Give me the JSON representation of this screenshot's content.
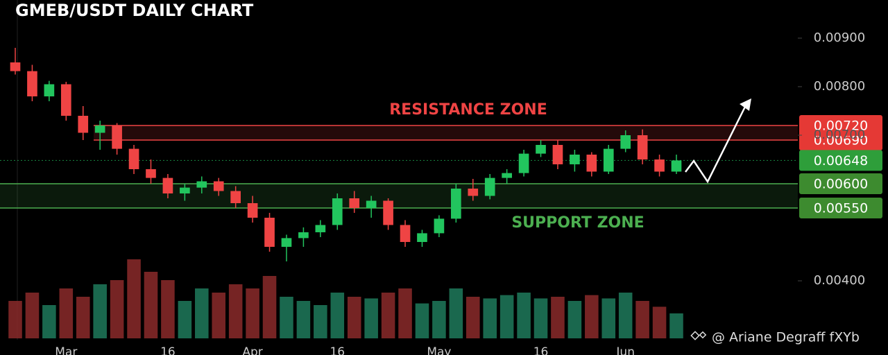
{
  "chart_data": {
    "type": "candlestick",
    "title": "GMEB/USDT DAILY CHART",
    "categories": [
      null,
      null,
      null,
      "Mar",
      null,
      null,
      null,
      null,
      null,
      "16",
      null,
      null,
      null,
      null,
      "Apr",
      null,
      null,
      null,
      null,
      "16",
      null,
      null,
      null,
      null,
      null,
      "May",
      null,
      null,
      null,
      null,
      null,
      "16",
      null,
      null,
      null,
      null,
      "Jun",
      null,
      null,
      null
    ],
    "open": [
      0.0085,
      0.00832,
      0.0078,
      0.00805,
      0.0074,
      0.00705,
      0.0072,
      0.00672,
      0.0063,
      0.00612,
      0.0058,
      0.00592,
      0.00605,
      0.00585,
      0.0056,
      0.0053,
      0.0047,
      0.00488,
      0.005,
      0.00515,
      0.0057,
      0.0055,
      0.00565,
      0.00515,
      0.0048,
      0.00498,
      0.00528,
      0.0059,
      0.00575,
      0.00612,
      0.00622,
      0.00662,
      0.0068,
      0.0064,
      0.0066,
      0.00625,
      0.00672,
      0.007,
      0.0065,
      0.00625
    ],
    "high": [
      0.0088,
      0.00845,
      0.00812,
      0.0081,
      0.0076,
      0.0073,
      0.00725,
      0.0068,
      0.0065,
      0.0062,
      0.006,
      0.00615,
      0.00612,
      0.00595,
      0.00575,
      0.0054,
      0.00495,
      0.0051,
      0.00525,
      0.0058,
      0.00585,
      0.00575,
      0.0057,
      0.00525,
      0.00505,
      0.00535,
      0.006,
      0.0061,
      0.0062,
      0.0063,
      0.0067,
      0.0069,
      0.0069,
      0.0067,
      0.00665,
      0.0068,
      0.0071,
      0.00712,
      0.0066,
      0.0066
    ],
    "low": [
      0.00825,
      0.0077,
      0.0077,
      0.0073,
      0.0069,
      0.0067,
      0.0066,
      0.0062,
      0.006,
      0.0057,
      0.00565,
      0.0058,
      0.00575,
      0.0055,
      0.0052,
      0.0046,
      0.0044,
      0.0047,
      0.0049,
      0.00505,
      0.0054,
      0.0053,
      0.00505,
      0.0047,
      0.0047,
      0.0049,
      0.0052,
      0.00565,
      0.00568,
      0.006,
      0.00615,
      0.00655,
      0.0063,
      0.00625,
      0.00615,
      0.0062,
      0.00665,
      0.0064,
      0.00615,
      0.0062
    ],
    "close": [
      0.00832,
      0.0078,
      0.00805,
      0.0074,
      0.00705,
      0.0072,
      0.00672,
      0.0063,
      0.00612,
      0.0058,
      0.00592,
      0.00605,
      0.00585,
      0.0056,
      0.0053,
      0.0047,
      0.00488,
      0.005,
      0.00515,
      0.0057,
      0.0055,
      0.00565,
      0.00515,
      0.0048,
      0.00498,
      0.00528,
      0.0059,
      0.00575,
      0.00612,
      0.00622,
      0.00662,
      0.0068,
      0.0064,
      0.0066,
      0.00625,
      0.00672,
      0.007,
      0.0065,
      0.00625,
      0.00648
    ],
    "volume": [
      45,
      55,
      40,
      60,
      50,
      65,
      70,
      95,
      80,
      70,
      45,
      60,
      55,
      65,
      60,
      75,
      50,
      45,
      40,
      55,
      50,
      48,
      55,
      60,
      42,
      45,
      60,
      50,
      48,
      52,
      55,
      48,
      50,
      45,
      52,
      48,
      55,
      45,
      38,
      30
    ],
    "up_color": "#22c55e",
    "down_color": "#ef4444",
    "ylim": [
      0.0035,
      0.0095
    ],
    "yticks": [
      {
        "value": 0.004,
        "label": "0.00400"
      },
      {
        "value": 0.007,
        "label": "0.00700"
      },
      {
        "value": 0.008,
        "label": "0.00800"
      },
      {
        "value": 0.009,
        "label": "0.00900"
      }
    ],
    "resistance": {
      "label": "RESISTANCE ZONE",
      "bounds": [
        {
          "value": 0.0069,
          "label": "0.00690"
        },
        {
          "value": 0.0072,
          "label": "0.00720"
        }
      ],
      "color": "#ef4444"
    },
    "support": {
      "label": "SUPPORT ZONE",
      "bounds": [
        {
          "value": 0.0055,
          "label": "0.00550"
        },
        {
          "value": 0.006,
          "label": "0.00600"
        }
      ],
      "color": "#4caf50"
    },
    "current_price": {
      "value": 0.00648,
      "label": "0.00648"
    },
    "watermark": "@ Ariane Degraff fXYb"
  }
}
